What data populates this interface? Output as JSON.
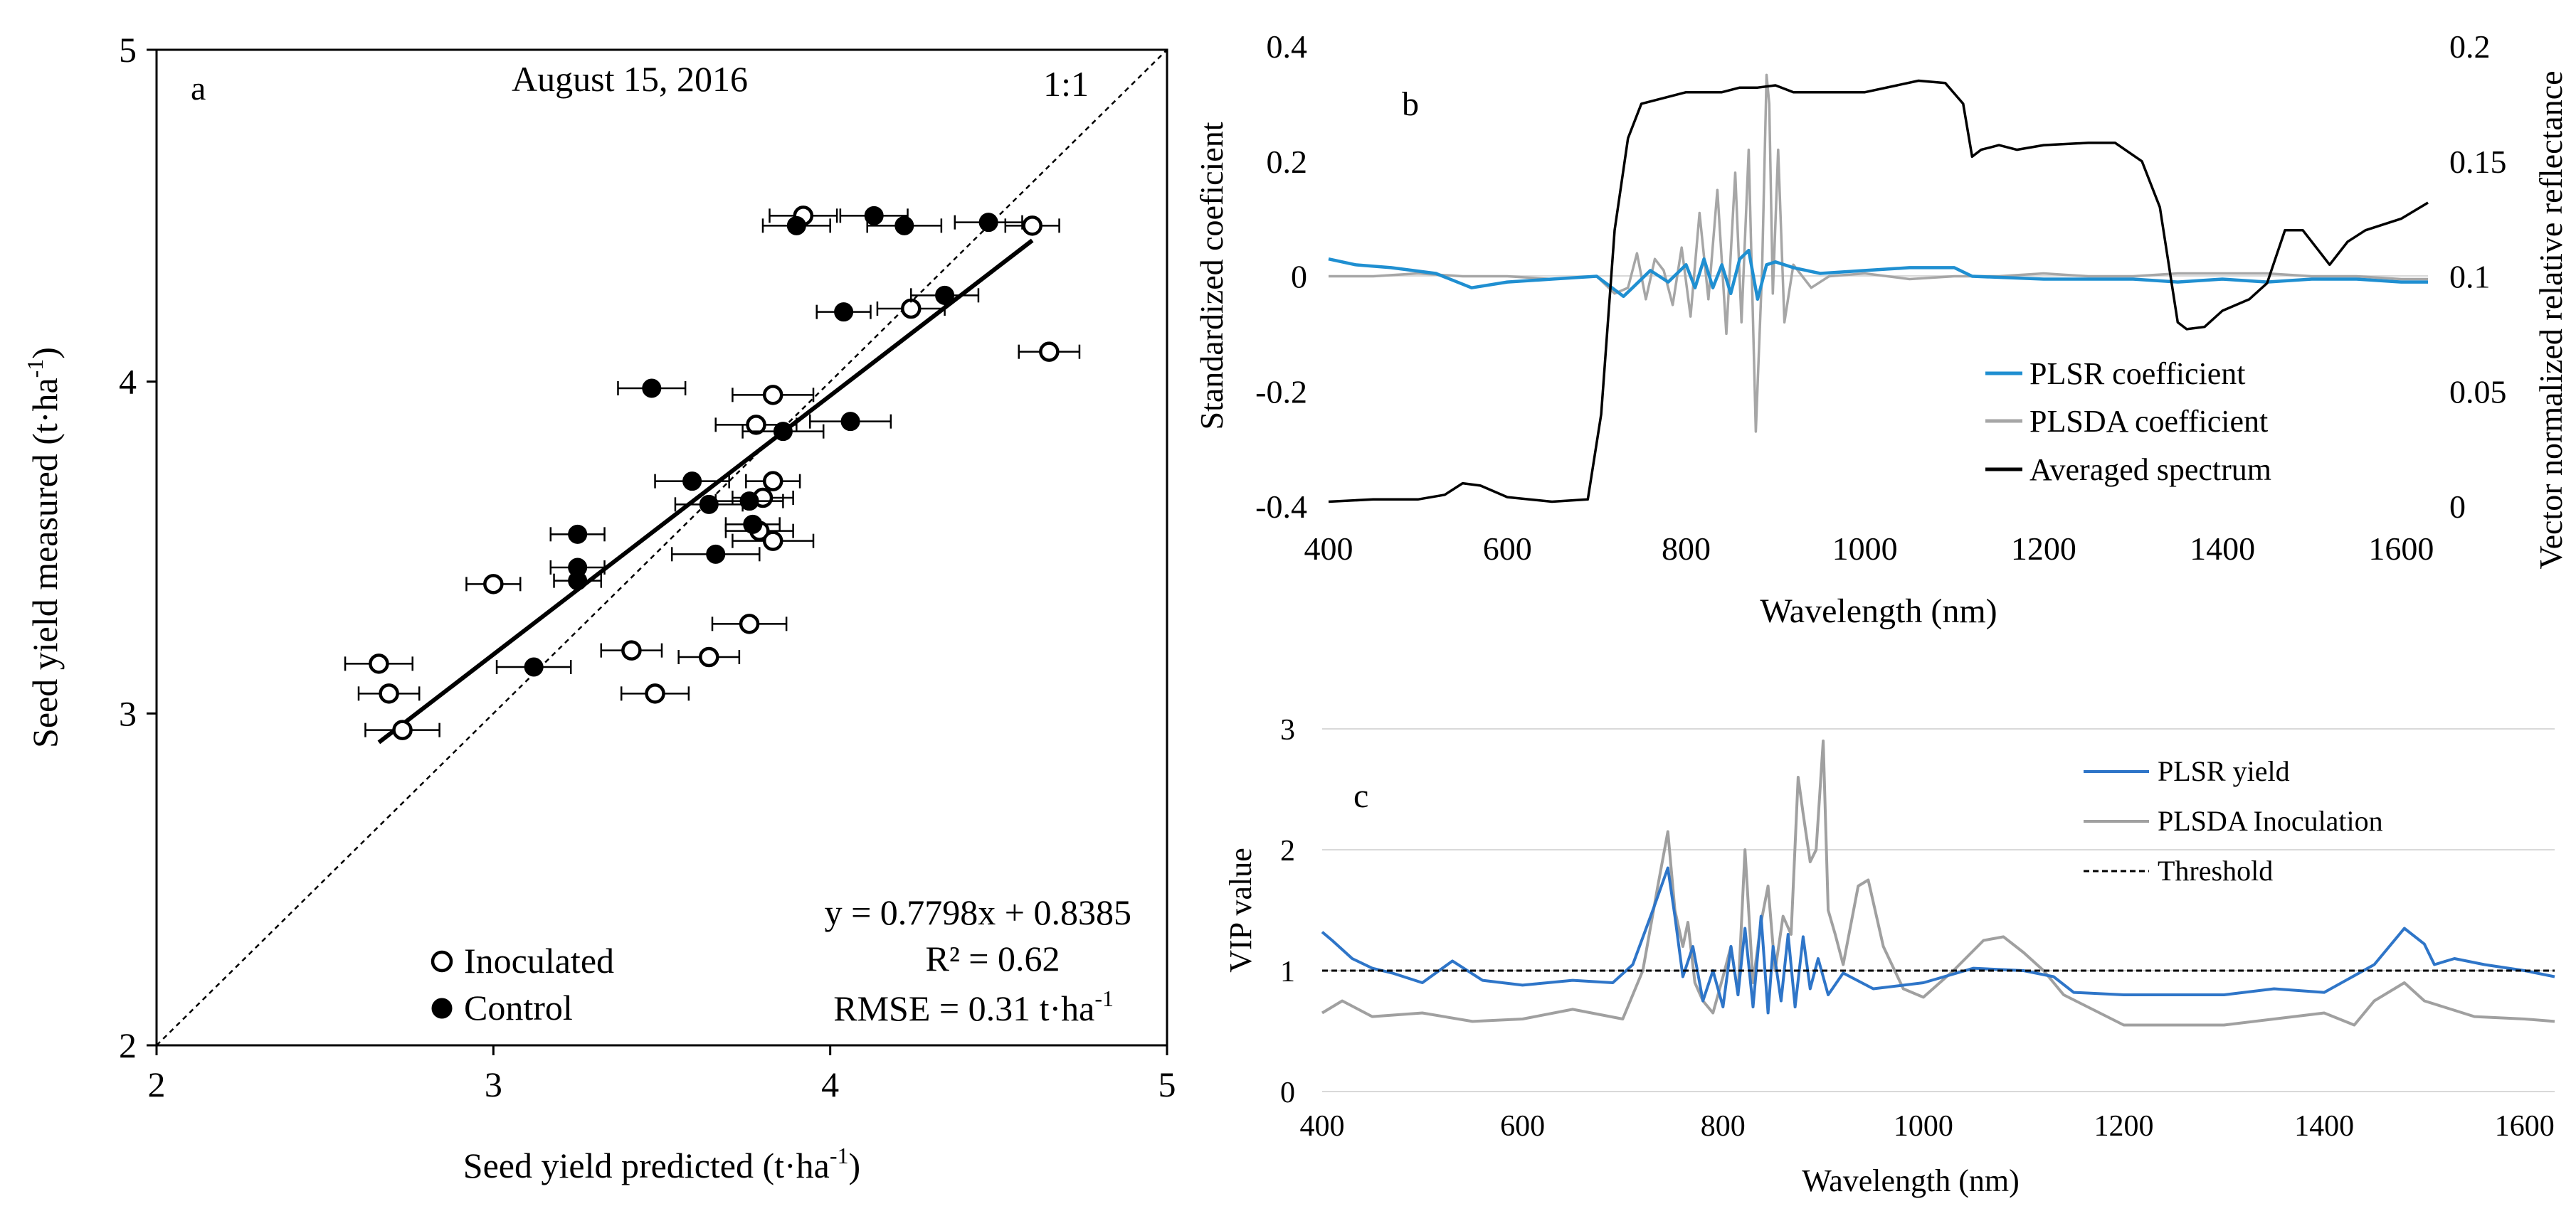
{
  "chart_data": [
    {
      "panel": "a",
      "type": "scatter",
      "title": "August 15, 2016",
      "xlabel": "Seed yield predicted (t·ha",
      "xlabel_sup": "-1",
      "xlabel_end": ")",
      "ylabel": "Seed yield measured (t·ha",
      "ylabel_sup": "-1",
      "ylabel_end": ")",
      "xlim": [
        2,
        5
      ],
      "ylim": [
        2,
        5
      ],
      "xticks": [
        "2",
        "3",
        "4",
        "5"
      ],
      "yticks": [
        "2",
        "3",
        "4",
        "5"
      ],
      "one_to_one_label": "1:1",
      "regression": {
        "equation": "y = 0.7798x + 0.8385",
        "r2": "R² = 0.62",
        "rmse": "RMSE = 0.31 t·ha",
        "rmse_sup": "-1",
        "slope": 0.7798,
        "intercept": 0.8385,
        "x_range": [
          2.66,
          4.6
        ]
      },
      "legend_placement": "bottom-left",
      "series": [
        {
          "name": "Inoculated",
          "marker": "open-circle",
          "points": [
            {
              "x": 3.92,
              "y": 4.5,
              "xerr": 0.1
            },
            {
              "x": 4.6,
              "y": 4.47,
              "xerr": 0.08
            },
            {
              "x": 4.24,
              "y": 4.22,
              "xerr": 0.1
            },
            {
              "x": 4.65,
              "y": 4.09,
              "xerr": 0.09
            },
            {
              "x": 3.83,
              "y": 3.96,
              "xerr": 0.12
            },
            {
              "x": 3.78,
              "y": 3.87,
              "xerr": 0.12
            },
            {
              "x": 3.83,
              "y": 3.7,
              "xerr": 0.08
            },
            {
              "x": 3.8,
              "y": 3.65,
              "xerr": 0.09
            },
            {
              "x": 3.79,
              "y": 3.55,
              "xerr": 0.1
            },
            {
              "x": 3.83,
              "y": 3.52,
              "xerr": 0.12
            },
            {
              "x": 3.0,
              "y": 3.39,
              "xerr": 0.08
            },
            {
              "x": 3.76,
              "y": 3.27,
              "xerr": 0.11
            },
            {
              "x": 3.41,
              "y": 3.19,
              "xerr": 0.09
            },
            {
              "x": 3.64,
              "y": 3.17,
              "xerr": 0.09
            },
            {
              "x": 2.66,
              "y": 3.15,
              "xerr": 0.1
            },
            {
              "x": 3.48,
              "y": 3.06,
              "xerr": 0.1
            },
            {
              "x": 2.69,
              "y": 3.06,
              "xerr": 0.09
            },
            {
              "x": 2.73,
              "y": 2.95,
              "xerr": 0.11
            }
          ]
        },
        {
          "name": "Control",
          "marker": "filled-circle",
          "points": [
            {
              "x": 4.13,
              "y": 4.5,
              "xerr": 0.1
            },
            {
              "x": 4.47,
              "y": 4.48,
              "xerr": 0.1
            },
            {
              "x": 3.9,
              "y": 4.47,
              "xerr": 0.1
            },
            {
              "x": 4.22,
              "y": 4.47,
              "xerr": 0.11
            },
            {
              "x": 4.34,
              "y": 4.26,
              "xerr": 0.1
            },
            {
              "x": 4.04,
              "y": 4.21,
              "xerr": 0.08
            },
            {
              "x": 3.47,
              "y": 3.98,
              "xerr": 0.1
            },
            {
              "x": 4.06,
              "y": 3.88,
              "xerr": 0.12
            },
            {
              "x": 3.86,
              "y": 3.85,
              "xerr": 0.12
            },
            {
              "x": 3.59,
              "y": 3.7,
              "xerr": 0.11
            },
            {
              "x": 3.76,
              "y": 3.64,
              "xerr": 0.1
            },
            {
              "x": 3.64,
              "y": 3.63,
              "xerr": 0.1
            },
            {
              "x": 3.77,
              "y": 3.57,
              "xerr": 0.08
            },
            {
              "x": 3.25,
              "y": 3.54,
              "xerr": 0.08
            },
            {
              "x": 3.66,
              "y": 3.48,
              "xerr": 0.13
            },
            {
              "x": 3.25,
              "y": 3.44,
              "xerr": 0.08
            },
            {
              "x": 3.25,
              "y": 3.4,
              "xerr": 0.07
            },
            {
              "x": 3.12,
              "y": 3.14,
              "xerr": 0.11
            }
          ]
        }
      ]
    },
    {
      "panel": "b",
      "type": "line",
      "xlabel": "Wavelength (nm)",
      "ylabel": "Standardized coeficient",
      "y2label": "Vector normalized relative reflectance",
      "xlim": [
        400,
        1630
      ],
      "ylim": [
        -0.4,
        0.4
      ],
      "y2lim": [
        0,
        0.2
      ],
      "xticks": [
        "400",
        "600",
        "800",
        "1000",
        "1200",
        "1400",
        "1600"
      ],
      "yticks": [
        "-0.4",
        "-0.2",
        "0",
        "0.2",
        "0.4"
      ],
      "y2ticks": [
        "0",
        "0.05",
        "0.1",
        "0.15",
        "0.2"
      ],
      "legend_placement": "bottom-right",
      "series": [
        {
          "name": "PLSR coefficient",
          "axis": "left",
          "color": "#1f8fd1",
          "x": [
            400,
            430,
            470,
            520,
            560,
            600,
            650,
            700,
            730,
            740,
            760,
            780,
            800,
            810,
            820,
            830,
            840,
            850,
            860,
            870,
            880,
            890,
            900,
            920,
            950,
            1000,
            1050,
            1100,
            1120,
            1200,
            1250,
            1300,
            1350,
            1400,
            1450,
            1500,
            1550,
            1600,
            1630
          ],
          "y": [
            0.03,
            0.02,
            0.015,
            0.005,
            -0.02,
            -0.01,
            -0.005,
            0,
            -0.035,
            -0.02,
            0.01,
            -0.01,
            0.02,
            -0.02,
            0.03,
            -0.02,
            0.02,
            -0.03,
            0.03,
            0.045,
            -0.04,
            0.02,
            0.025,
            0.015,
            0.005,
            0.01,
            0.015,
            0.015,
            0,
            -0.005,
            -0.005,
            -0.005,
            -0.01,
            -0.005,
            -0.01,
            -0.005,
            -0.005,
            -0.01,
            -0.01
          ]
        },
        {
          "name": "PLSDA coefficient",
          "axis": "left",
          "color": "#a6a6a6",
          "x": [
            400,
            450,
            500,
            550,
            600,
            650,
            700,
            720,
            735,
            745,
            755,
            765,
            775,
            785,
            795,
            805,
            815,
            825,
            835,
            845,
            855,
            862,
            870,
            878,
            885,
            890,
            893,
            897,
            903,
            910,
            920,
            940,
            960,
            1000,
            1050,
            1100,
            1150,
            1200,
            1250,
            1300,
            1350,
            1400,
            1450,
            1500,
            1550,
            1600,
            1630
          ],
          "y": [
            0,
            0,
            0.005,
            0,
            0,
            -0.005,
            0,
            -0.03,
            -0.02,
            0.04,
            -0.04,
            0.03,
            0.01,
            -0.05,
            0.05,
            -0.07,
            0.11,
            -0.04,
            0.15,
            -0.1,
            0.18,
            -0.08,
            0.22,
            -0.27,
            0.01,
            0.35,
            0.3,
            -0.03,
            0.22,
            -0.08,
            0.02,
            -0.02,
            0,
            0.005,
            -0.005,
            0,
            0,
            0.005,
            0,
            0,
            0.005,
            0.005,
            0.005,
            0,
            0,
            -0.005,
            -0.005
          ]
        },
        {
          "name": "Averaged spectrum",
          "axis": "right",
          "color": "#000000",
          "x": [
            400,
            450,
            500,
            530,
            550,
            570,
            600,
            650,
            690,
            705,
            720,
            735,
            750,
            780,
            800,
            840,
            860,
            880,
            900,
            920,
            1000,
            1060,
            1090,
            1110,
            1120,
            1130,
            1150,
            1170,
            1200,
            1250,
            1280,
            1310,
            1330,
            1350,
            1360,
            1380,
            1400,
            1430,
            1450,
            1470,
            1490,
            1510,
            1520,
            1540,
            1560,
            1600,
            1630
          ],
          "y": [
            0.002,
            0.003,
            0.003,
            0.005,
            0.01,
            0.009,
            0.004,
            0.002,
            0.003,
            0.04,
            0.12,
            0.16,
            0.175,
            0.178,
            0.18,
            0.18,
            0.182,
            0.182,
            0.183,
            0.18,
            0.18,
            0.185,
            0.184,
            0.175,
            0.152,
            0.155,
            0.157,
            0.155,
            0.157,
            0.158,
            0.158,
            0.15,
            0.13,
            0.08,
            0.077,
            0.078,
            0.085,
            0.09,
            0.097,
            0.12,
            0.12,
            0.11,
            0.105,
            0.115,
            0.12,
            0.125,
            0.132
          ]
        }
      ]
    },
    {
      "panel": "c",
      "type": "line",
      "xlabel": "Wavelength (nm)",
      "ylabel": "VIP value",
      "xlim": [
        400,
        1630
      ],
      "ylim": [
        0,
        3
      ],
      "xticks": [
        "400",
        "600",
        "800",
        "1000",
        "1200",
        "1400",
        "1600"
      ],
      "yticks": [
        "0",
        "1",
        "2",
        "3"
      ],
      "legend_placement": "top-right",
      "series": [
        {
          "name": "PLSR yield",
          "color": "#2e75c8",
          "x": [
            400,
            410,
            430,
            450,
            470,
            500,
            530,
            560,
            600,
            650,
            690,
            710,
            730,
            745,
            752,
            760,
            770,
            780,
            790,
            800,
            808,
            815,
            822,
            830,
            838,
            845,
            850,
            858,
            865,
            872,
            880,
            887,
            895,
            905,
            920,
            950,
            1000,
            1050,
            1100,
            1130,
            1150,
            1200,
            1250,
            1300,
            1350,
            1400,
            1450,
            1480,
            1500,
            1510,
            1530,
            1560,
            1600,
            1630
          ],
          "y": [
            1.32,
            1.25,
            1.1,
            1.02,
            0.98,
            0.9,
            1.08,
            0.92,
            0.88,
            0.92,
            0.9,
            1.05,
            1.5,
            1.85,
            1.45,
            0.95,
            1.2,
            0.75,
            1.0,
            0.7,
            1.2,
            0.8,
            1.35,
            0.7,
            1.45,
            0.65,
            1.2,
            0.75,
            1.3,
            0.7,
            1.28,
            0.85,
            1.1,
            0.8,
            0.98,
            0.85,
            0.9,
            1.02,
            1.0,
            0.95,
            0.82,
            0.8,
            0.8,
            0.8,
            0.85,
            0.82,
            1.05,
            1.35,
            1.22,
            1.05,
            1.1,
            1.05,
            1.0,
            0.95
          ]
        },
        {
          "name": "PLSDA Inoculation",
          "color": "#a0a0a0",
          "x": [
            400,
            420,
            450,
            500,
            550,
            600,
            650,
            700,
            720,
            735,
            745,
            752,
            760,
            765,
            772,
            780,
            790,
            800,
            808,
            815,
            822,
            830,
            838,
            845,
            852,
            860,
            868,
            875,
            880,
            887,
            893,
            900,
            905,
            912,
            920,
            935,
            945,
            960,
            980,
            1000,
            1030,
            1060,
            1080,
            1100,
            1120,
            1140,
            1200,
            1250,
            1300,
            1350,
            1400,
            1430,
            1450,
            1470,
            1480,
            1500,
            1550,
            1600,
            1630
          ],
          "y": [
            0.65,
            0.75,
            0.62,
            0.65,
            0.58,
            0.6,
            0.68,
            0.6,
            1.0,
            1.7,
            2.15,
            1.5,
            1.2,
            1.4,
            0.9,
            0.75,
            0.65,
            0.95,
            1.2,
            0.8,
            2.0,
            0.9,
            1.4,
            1.7,
            1.0,
            1.45,
            1.3,
            2.6,
            2.3,
            1.9,
            2.0,
            2.9,
            1.5,
            1.3,
            1.05,
            1.7,
            1.75,
            1.2,
            0.85,
            0.78,
            1.0,
            1.25,
            1.28,
            1.15,
            1.0,
            0.8,
            0.55,
            0.55,
            0.55,
            0.6,
            0.65,
            0.55,
            0.75,
            0.85,
            0.9,
            0.75,
            0.62,
            0.6,
            0.58
          ]
        },
        {
          "name": "Threshold",
          "color": "#000000",
          "dashed": true,
          "x": [
            400,
            1630
          ],
          "y": [
            1,
            1
          ]
        }
      ]
    }
  ]
}
